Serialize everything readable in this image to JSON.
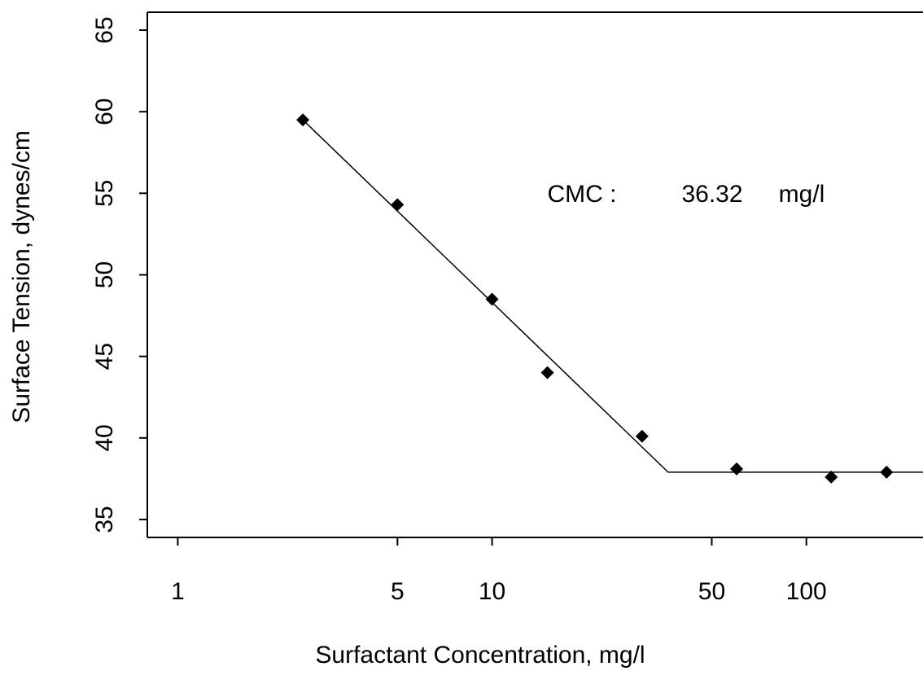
{
  "chart_data": {
    "type": "scatter",
    "x_label": "Surfactant Concentration, mg/l",
    "y_label": "Surface Tension, dynes/cm",
    "log_x": true,
    "xlim": [
      0.8,
      235
    ],
    "ylim": [
      33.9,
      66.1
    ],
    "xticks": [
      1,
      5,
      10,
      50,
      100
    ],
    "yticks": [
      35,
      40,
      45,
      50,
      55,
      60,
      65
    ],
    "series": [
      {
        "x": [
          2.5,
          5,
          10,
          15,
          30,
          60,
          120,
          180
        ],
        "values": [
          59.5,
          54.3,
          48.5,
          44,
          40.1,
          38.1,
          37.6,
          37.9
        ],
        "color": "#000000",
        "marker": "diamond"
      }
    ],
    "fit_line": {
      "x": [
        2.5,
        36.32,
        235
      ],
      "values": [
        59.5,
        37.9,
        37.9
      ],
      "color": "#000000"
    },
    "annotations": [
      "CMC :",
      "36.32",
      "mg/l"
    ]
  }
}
